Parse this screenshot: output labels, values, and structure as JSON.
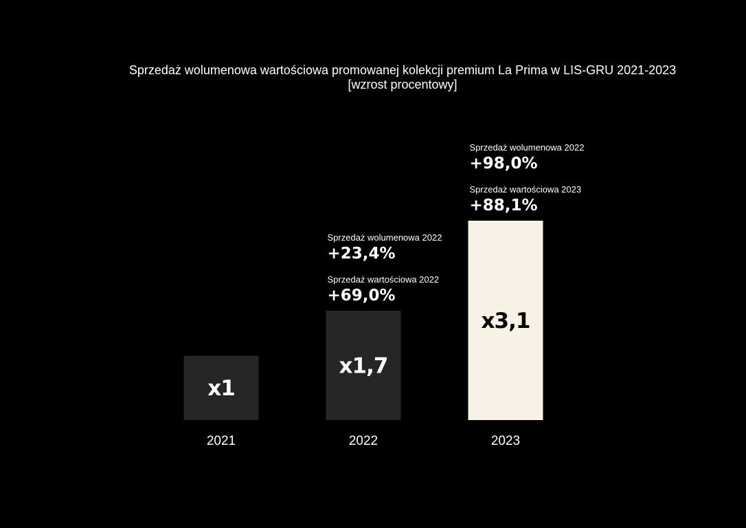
{
  "chart_data": {
    "type": "bar",
    "title": "Sprzedaż wolumenowa wartościowa promowanej kolekcji premium La Prima w LIS-GRU 2021-2023",
    "subtitle": "[wzrost procentowy]",
    "categories": [
      "2021",
      "2022",
      "2023"
    ],
    "values": [
      1,
      1.7,
      3.1
    ],
    "value_labels": [
      "x1",
      "x1,7",
      "x3,1"
    ],
    "ylim": [
      0,
      3.1
    ],
    "grid": false,
    "annotations": [
      null,
      [
        {
          "label": "Sprzedaż wolumenowa 2022",
          "value": "+23,4%"
        },
        {
          "label": "Sprzedaż wartościowa 2022",
          "value": "+69,0%"
        }
      ],
      [
        {
          "label": "Sprzedaż wolumenowa 2022",
          "value": "+98,0%"
        },
        {
          "label": "Sprzedaż wartościowa 2023",
          "value": "+88,1%"
        }
      ]
    ],
    "colors": {
      "bar_default": "#272625",
      "bar_highlight": "#f8f2e6",
      "label_on_dark": "#ffffff",
      "label_on_light": "#000000",
      "background": "#000000"
    },
    "highlight_index": 2
  }
}
